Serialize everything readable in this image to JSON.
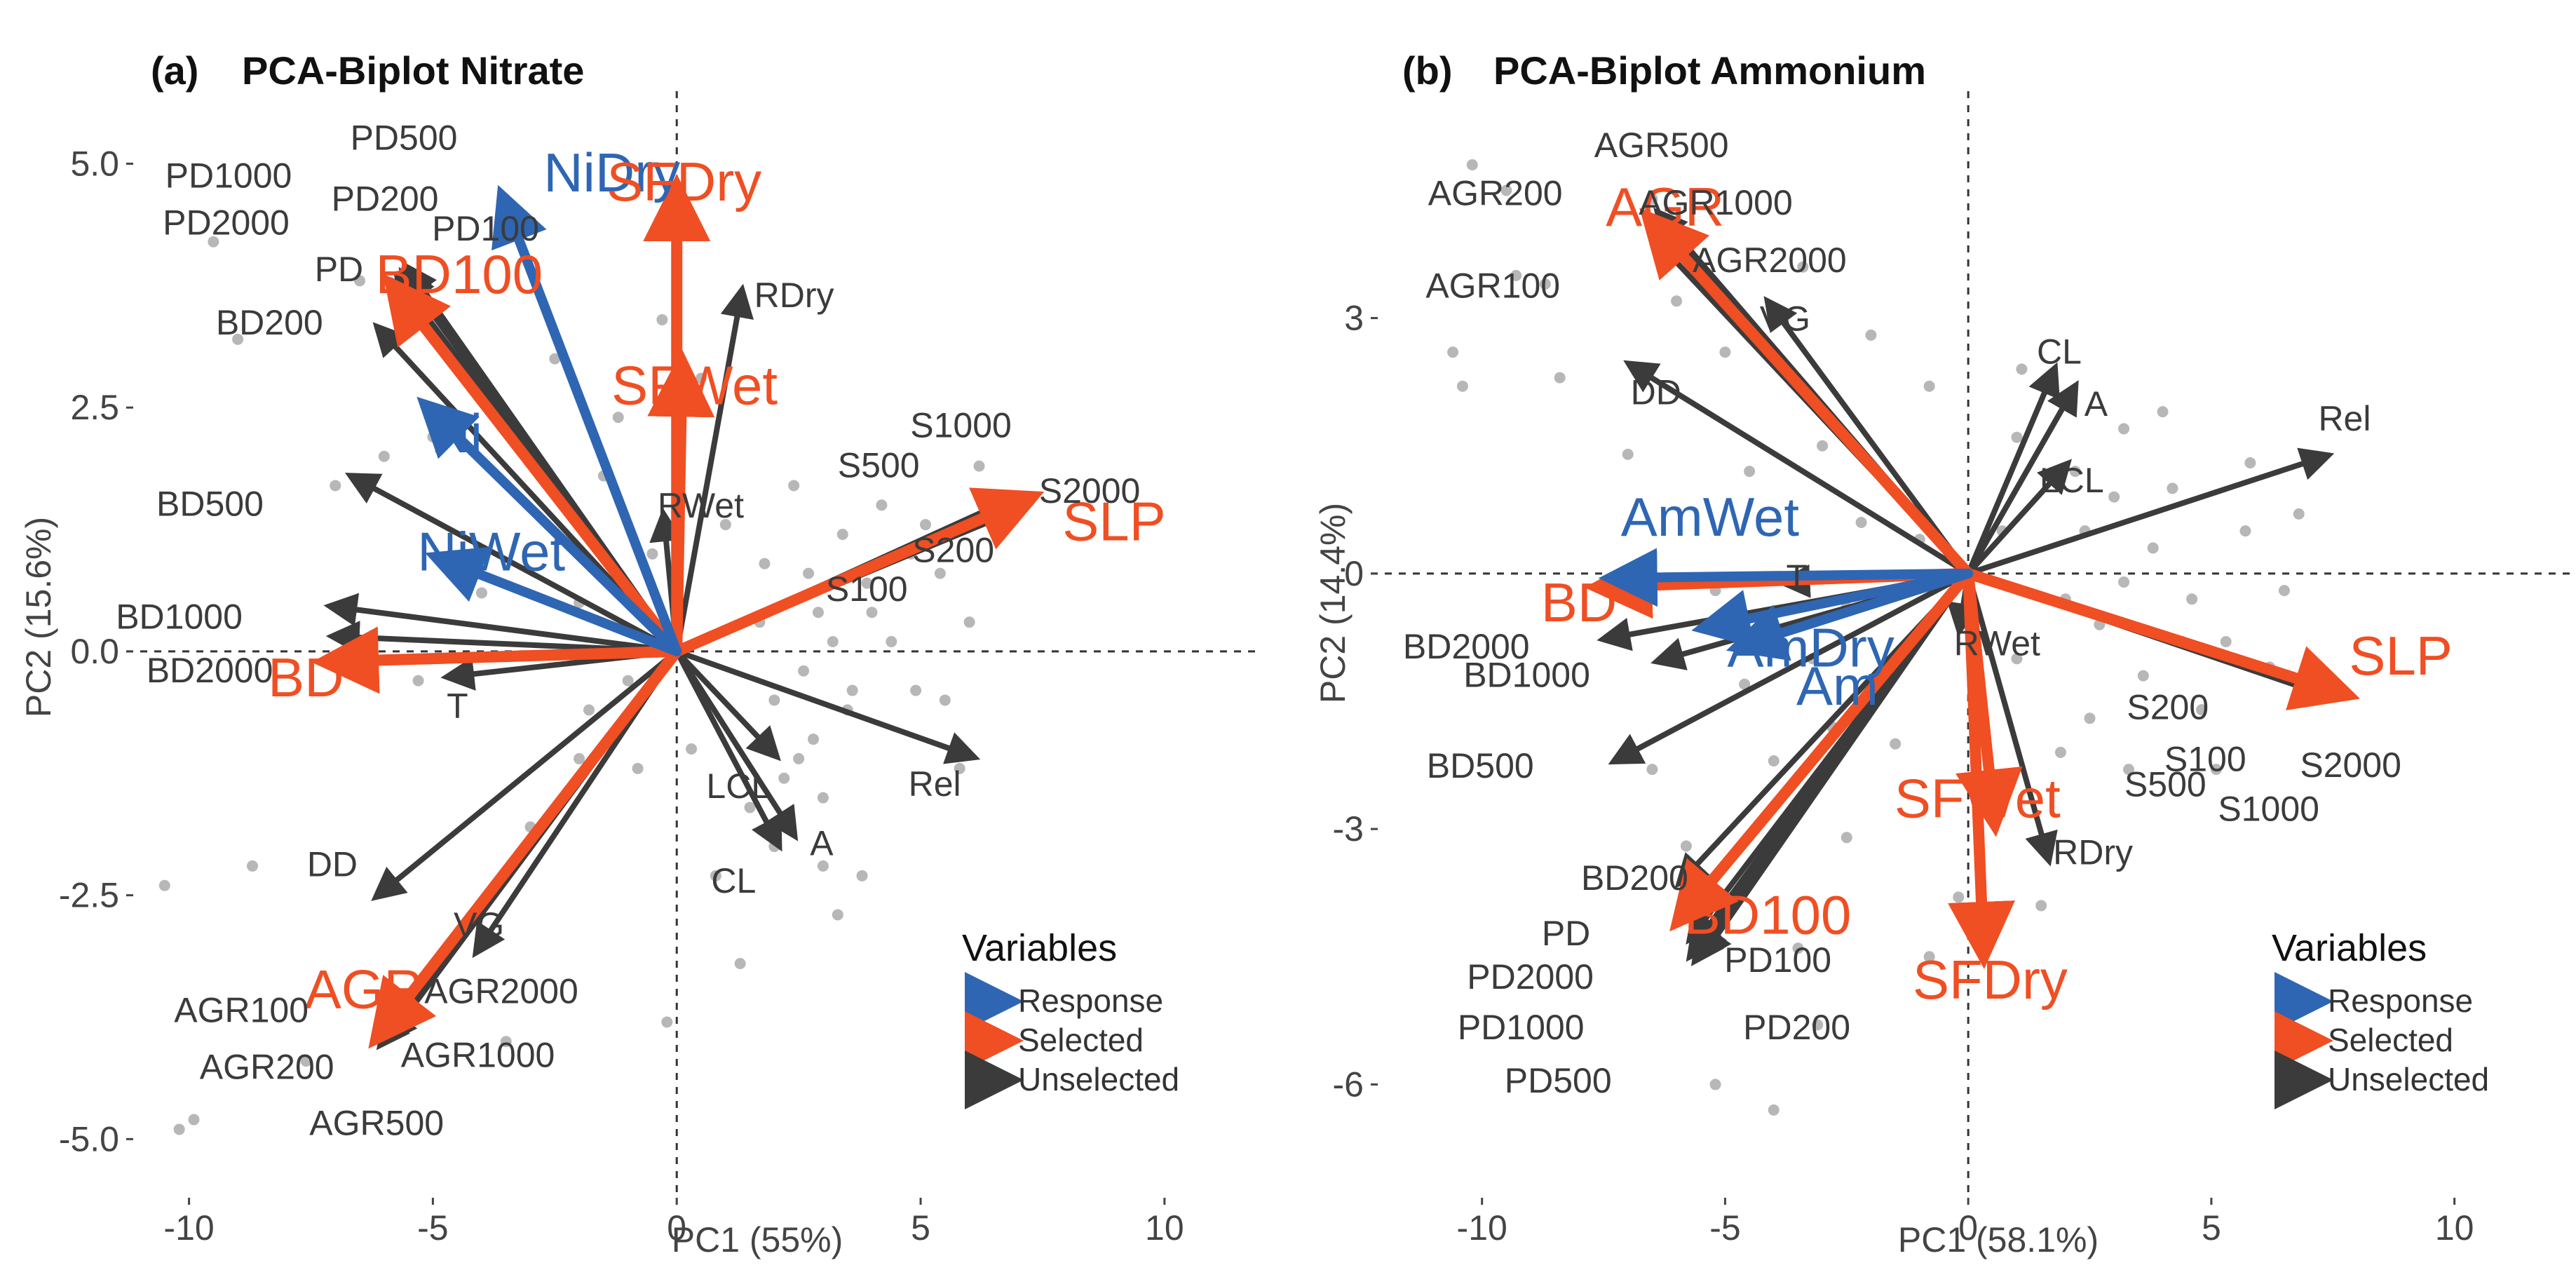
{
  "colors": {
    "response": "#2e66b3",
    "selected": "#f04e23",
    "unselected": "#3b3b3b",
    "points": "#b7b7b7",
    "label_gray": "#3b3b3b"
  },
  "chart_data": [
    {
      "type": "scatter",
      "panel": "(a)",
      "title": "PCA-Biplot Nitrate",
      "xlabel": "PC1 (55%)",
      "ylabel": "PC2 (15.6%)",
      "xlim": [
        -11,
        12
      ],
      "ylim": [
        -5.4,
        5.6
      ],
      "xticks": [
        -10,
        -5,
        0,
        5,
        10
      ],
      "yticks": [
        -5.0,
        -2.5,
        0.0,
        2.5,
        5.0
      ],
      "xtick_labels": [
        "-10",
        "-5",
        "0",
        "5",
        "10"
      ],
      "ytick_labels": [
        "-5.0",
        "-2.5",
        "0.0",
        "2.5",
        "5.0"
      ],
      "legend": {
        "title": "Variables",
        "position": "bottom-right",
        "items": [
          "Response",
          "Selected",
          "Unselected"
        ]
      },
      "points": [
        [
          -9.5,
          4.2
        ],
        [
          -9,
          3.2
        ],
        [
          -10.2,
          -4.9
        ],
        [
          -9.9,
          -4.8
        ],
        [
          -10.5,
          -2.4
        ],
        [
          -8.7,
          -2.2
        ],
        [
          -6,
          2
        ],
        [
          -5,
          2.2
        ],
        [
          -5.3,
          -0.3
        ],
        [
          -4,
          0.6
        ],
        [
          -7,
          1.7
        ],
        [
          -2.5,
          3
        ],
        [
          -3.2,
          2.1
        ],
        [
          -1.5,
          1.8
        ],
        [
          -2,
          0.5
        ],
        [
          -1,
          -0.3
        ],
        [
          -2,
          -1.1
        ],
        [
          -3,
          -1.8
        ],
        [
          -0.8,
          -1.2
        ],
        [
          0.5,
          2.8
        ],
        [
          1.7,
          0.3
        ],
        [
          2,
          -0.5
        ],
        [
          2.7,
          0.8
        ],
        [
          3.2,
          0.1
        ],
        [
          3.5,
          -0.6
        ],
        [
          2.2,
          -1.3
        ],
        [
          3,
          -1.5
        ],
        [
          3.4,
          1.2
        ],
        [
          4.8,
          1
        ],
        [
          5.4,
          0.8
        ],
        [
          4.4,
          0.1
        ],
        [
          4.9,
          -0.4
        ],
        [
          3,
          -2.2
        ],
        [
          3.8,
          -2.3
        ],
        [
          1.3,
          -3.2
        ],
        [
          2,
          -2
        ],
        [
          2.5,
          -1.1
        ],
        [
          4,
          0.4
        ],
        [
          6,
          0.3
        ],
        [
          5.5,
          -0.5
        ],
        [
          3.6,
          -0.4
        ],
        [
          2.8,
          -0.9
        ],
        [
          1.5,
          -1.6
        ],
        [
          0.8,
          -2.3
        ],
        [
          0.3,
          -1
        ],
        [
          -0.5,
          1
        ],
        [
          -1.2,
          2.4
        ],
        [
          -0.3,
          3.4
        ],
        [
          4.2,
          1.5
        ],
        [
          5.1,
          1.3
        ],
        [
          3.9,
          0.7
        ],
        [
          2.9,
          0.4
        ],
        [
          1,
          1.3
        ],
        [
          -1.8,
          -0.6
        ],
        [
          -4.5,
          -2.9
        ],
        [
          -7.6,
          -4.2
        ],
        [
          -6.5,
          3.8
        ],
        [
          -3.5,
          -4
        ],
        [
          6.2,
          1.9
        ],
        [
          2.4,
          1.7
        ],
        [
          3.3,
          -2.7
        ],
        [
          -0.2,
          -3.8
        ],
        [
          1.8,
          0.9
        ],
        [
          5.8,
          -1.2
        ],
        [
          2.6,
          -0.2
        ]
      ],
      "arrows": [
        {
          "label": "NiDry",
          "group": "response",
          "x": -3.45,
          "y": 4.5
        },
        {
          "label": "Ni",
          "group": "response",
          "x": -4.9,
          "y": 2.4
        },
        {
          "label": "NiWet",
          "group": "response",
          "x": -4.6,
          "y": 0.9
        },
        {
          "label": "SFDry",
          "group": "selected",
          "x": 0,
          "y": 4.55
        },
        {
          "label": "SFWet",
          "group": "selected",
          "x": 0.1,
          "y": 2.75
        },
        {
          "label": "BD100",
          "group": "selected",
          "x": -5.6,
          "y": 3.6
        },
        {
          "label": "SLP",
          "group": "selected",
          "x": 6.9,
          "y": 1.5
        },
        {
          "label": "BD",
          "group": "selected",
          "x": -6.8,
          "y": -0.1
        },
        {
          "label": "AGR",
          "group": "selected",
          "x": -5.9,
          "y": -3.8
        },
        {
          "label": "PD500",
          "group": "unselected",
          "x": -5.4,
          "y": 3.85
        },
        {
          "label": "PD200",
          "group": "unselected",
          "x": -5.5,
          "y": 3.8
        },
        {
          "label": "PD1000",
          "group": "unselected",
          "x": -5.6,
          "y": 3.75
        },
        {
          "label": "PD2000",
          "group": "unselected",
          "x": -5.65,
          "y": 3.7
        },
        {
          "label": "PD100",
          "group": "unselected",
          "x": -5.45,
          "y": 3.78
        },
        {
          "label": "PD",
          "group": "unselected",
          "x": -5.7,
          "y": 3.65
        },
        {
          "label": "BD200",
          "group": "unselected",
          "x": -6,
          "y": 3.25
        },
        {
          "label": "BD500",
          "group": "unselected",
          "x": -6.5,
          "y": 1.75
        },
        {
          "label": "BD1000",
          "group": "unselected",
          "x": -6.9,
          "y": 0.45
        },
        {
          "label": "BD2000",
          "group": "unselected",
          "x": -6.85,
          "y": 0.15
        },
        {
          "label": "T",
          "group": "unselected",
          "x": -4.5,
          "y": -0.25
        },
        {
          "label": "RDry",
          "group": "unselected",
          "x": 1.3,
          "y": 3.6
        },
        {
          "label": "RWet",
          "group": "unselected",
          "x": -0.25,
          "y": 1.3
        },
        {
          "label": "S1000",
          "group": "unselected",
          "x": 6.8,
          "y": 1.55
        },
        {
          "label": "S500",
          "group": "unselected",
          "x": 6.75,
          "y": 1.5
        },
        {
          "label": "S2000",
          "group": "unselected",
          "x": 6.85,
          "y": 1.45
        },
        {
          "label": "S200",
          "group": "unselected",
          "x": 6.7,
          "y": 1.42
        },
        {
          "label": "S100",
          "group": "unselected",
          "x": 6.65,
          "y": 1.38
        },
        {
          "label": "Rel",
          "group": "unselected",
          "x": 5.9,
          "y": -1.05
        },
        {
          "label": "LCL",
          "group": "unselected",
          "x": 1.9,
          "y": -1.0
        },
        {
          "label": "A",
          "group": "unselected",
          "x": 2.3,
          "y": -1.8
        },
        {
          "label": "CL",
          "group": "unselected",
          "x": 2.0,
          "y": -1.9
        },
        {
          "label": "DD",
          "group": "unselected",
          "x": -6,
          "y": -2.45
        },
        {
          "label": "VG",
          "group": "unselected",
          "x": -4,
          "y": -3.0
        },
        {
          "label": "AGR100",
          "group": "unselected",
          "x": -5.85,
          "y": -3.8
        },
        {
          "label": "AGR200",
          "group": "unselected",
          "x": -5.9,
          "y": -3.88
        },
        {
          "label": "AGR1000",
          "group": "unselected",
          "x": -5.8,
          "y": -3.9
        },
        {
          "label": "AGR2000",
          "group": "unselected",
          "x": -5.75,
          "y": -3.75
        },
        {
          "label": "AGR500",
          "group": "unselected",
          "x": -5.95,
          "y": -3.95
        }
      ]
    },
    {
      "type": "scatter",
      "panel": "(b)",
      "title": "PCA-Biplot Ammonium",
      "xlabel": "PC1 (58.1%)",
      "ylabel": "PC2 (14.4%)",
      "xlim": [
        -12,
        12.5
      ],
      "ylim": [
        -7.1,
        5.5
      ],
      "xticks": [
        -10,
        -5,
        0,
        5,
        10
      ],
      "yticks": [
        -6,
        -3,
        0,
        3
      ],
      "xtick_labels": [
        "-10",
        "-5",
        "0",
        "5",
        "10"
      ],
      "ytick_labels": [
        "-6",
        "-3",
        "0",
        "3"
      ],
      "legend": {
        "title": "Variables",
        "position": "bottom-right",
        "items": [
          "Response",
          "Selected",
          "Unselected"
        ]
      },
      "points": [
        [
          -10.2,
          4.8
        ],
        [
          -9.5,
          4.5
        ],
        [
          -10.6,
          2.6
        ],
        [
          -10.4,
          2.2
        ],
        [
          -9.3,
          3.5
        ],
        [
          -8.7,
          3.4
        ],
        [
          -6.5,
          4.4
        ],
        [
          -8.4,
          2.3
        ],
        [
          -7,
          1.4
        ],
        [
          -6,
          3.2
        ],
        [
          -5,
          2.6
        ],
        [
          -4.5,
          1.2
        ],
        [
          -3,
          1.5
        ],
        [
          -2.2,
          0.6
        ],
        [
          -1,
          0.4
        ],
        [
          -2.5,
          -0.4
        ],
        [
          -3.2,
          -1
        ],
        [
          -4.6,
          -1.3
        ],
        [
          -5.2,
          -0.2
        ],
        [
          -4,
          -2.2
        ],
        [
          -6.5,
          -2.3
        ],
        [
          -5.8,
          -3.2
        ],
        [
          -2.5,
          -3.1
        ],
        [
          -3.5,
          -4.4
        ],
        [
          -5.2,
          -6
        ],
        [
          -4,
          -6.3
        ],
        [
          1,
          1.6
        ],
        [
          2.2,
          1.2
        ],
        [
          3.2,
          1.7
        ],
        [
          4.2,
          1
        ],
        [
          3.8,
          0.3
        ],
        [
          4.6,
          -0.3
        ],
        [
          5.7,
          0.5
        ],
        [
          5.3,
          -0.8
        ],
        [
          6.5,
          -0.2
        ],
        [
          4.8,
          -1.6
        ],
        [
          3.6,
          -1.2
        ],
        [
          2.7,
          -0.6
        ],
        [
          2,
          -0.3
        ],
        [
          1,
          -1
        ],
        [
          1.9,
          -2.1
        ],
        [
          3.3,
          -2.3
        ],
        [
          0.6,
          -2.6
        ],
        [
          -0.2,
          -3.8
        ],
        [
          1.5,
          -3.9
        ],
        [
          0.1,
          -0.6
        ],
        [
          0.7,
          0.5
        ],
        [
          2.4,
          0.5
        ],
        [
          5.8,
          1.3
        ],
        [
          5.1,
          -2.3
        ],
        [
          6.8,
          0.7
        ],
        [
          4,
          1.9
        ],
        [
          3,
          0.9
        ],
        [
          2.5,
          -1.7
        ],
        [
          1.1,
          2.4
        ],
        [
          -0.8,
          2.2
        ],
        [
          -2,
          2.8
        ],
        [
          -3.4,
          3.6
        ],
        [
          -1.5,
          -2
        ],
        [
          -2.8,
          -1.8
        ],
        [
          6.2,
          -1.1
        ],
        [
          4.4,
          -0.8
        ],
        [
          3.2,
          -0.1
        ],
        [
          -0.8,
          -4.5
        ],
        [
          -3.1,
          -5.3
        ]
      ],
      "arrows": [
        {
          "label": "AmWet",
          "group": "response",
          "x": -7,
          "y": -0.05
        },
        {
          "label": "AmDry",
          "group": "response",
          "x": -5.1,
          "y": -0.6
        },
        {
          "label": "Am",
          "group": "response",
          "x": -4.4,
          "y": -0.8
        },
        {
          "label": "AGR",
          "group": "selected",
          "x": -6.3,
          "y": 4.0
        },
        {
          "label": "BD",
          "group": "selected",
          "x": -7.2,
          "y": -0.15
        },
        {
          "label": "SLP",
          "group": "selected",
          "x": 7.4,
          "y": -1.35
        },
        {
          "label": "SFWet",
          "group": "selected",
          "x": 0.5,
          "y": -2.7
        },
        {
          "label": "SFDry",
          "group": "selected",
          "x": 0.3,
          "y": -4.25
        },
        {
          "label": "BD100",
          "group": "selected",
          "x": -5.7,
          "y": -3.9
        },
        {
          "label": "AGR500",
          "group": "unselected",
          "x": -6.25,
          "y": 4.15
        },
        {
          "label": "AGR200",
          "group": "unselected",
          "x": -6.35,
          "y": 4.08
        },
        {
          "label": "AGR1000",
          "group": "unselected",
          "x": -6.2,
          "y": 4.05
        },
        {
          "label": "AGR2000",
          "group": "unselected",
          "x": -6.1,
          "y": 3.95
        },
        {
          "label": "AGR100",
          "group": "unselected",
          "x": -6.4,
          "y": 3.9
        },
        {
          "label": "VG",
          "group": "unselected",
          "x": -4,
          "y": 3.1
        },
        {
          "label": "DD",
          "group": "unselected",
          "x": -6.8,
          "y": 2.4
        },
        {
          "label": "CL",
          "group": "unselected",
          "x": 1.7,
          "y": 2.3
        },
        {
          "label": "A",
          "group": "unselected",
          "x": 2.1,
          "y": 2.1
        },
        {
          "label": "LCL",
          "group": "unselected",
          "x": 1.9,
          "y": 1.2
        },
        {
          "label": "Rel",
          "group": "unselected",
          "x": 7.2,
          "y": 1.35
        },
        {
          "label": "T",
          "group": "unselected",
          "x": -3.6,
          "y": -0.1
        },
        {
          "label": "RWet",
          "group": "unselected",
          "x": -0.15,
          "y": -0.55
        },
        {
          "label": "RDry",
          "group": "unselected",
          "x": 1.6,
          "y": -3.25
        },
        {
          "label": "S200",
          "group": "unselected",
          "x": 7.3,
          "y": -1.3
        },
        {
          "label": "S100",
          "group": "unselected",
          "x": 7.35,
          "y": -1.33
        },
        {
          "label": "S500",
          "group": "unselected",
          "x": 7.25,
          "y": -1.38
        },
        {
          "label": "S2000",
          "group": "unselected",
          "x": 7.4,
          "y": -1.4
        },
        {
          "label": "S1000",
          "group": "unselected",
          "x": 7.3,
          "y": -1.42
        },
        {
          "label": "BD2000",
          "group": "unselected",
          "x": -7.3,
          "y": -0.75
        },
        {
          "label": "BD1000",
          "group": "unselected",
          "x": -6.2,
          "y": -1.0
        },
        {
          "label": "BD500",
          "group": "unselected",
          "x": -7.1,
          "y": -2.15
        },
        {
          "label": "BD200",
          "group": "unselected",
          "x": -5.8,
          "y": -3.55
        },
        {
          "label": "PD",
          "group": "unselected",
          "x": -5.6,
          "y": -4.2
        },
        {
          "label": "PD2000",
          "group": "unselected",
          "x": -5.55,
          "y": -4.3
        },
        {
          "label": "PD100",
          "group": "unselected",
          "x": -5.45,
          "y": -4.35
        },
        {
          "label": "PD1000",
          "group": "unselected",
          "x": -5.6,
          "y": -4.4
        },
        {
          "label": "PD500",
          "group": "unselected",
          "x": -5.5,
          "y": -4.45
        },
        {
          "label": "PD200",
          "group": "unselected",
          "x": -5.35,
          "y": -4.4
        }
      ]
    }
  ]
}
